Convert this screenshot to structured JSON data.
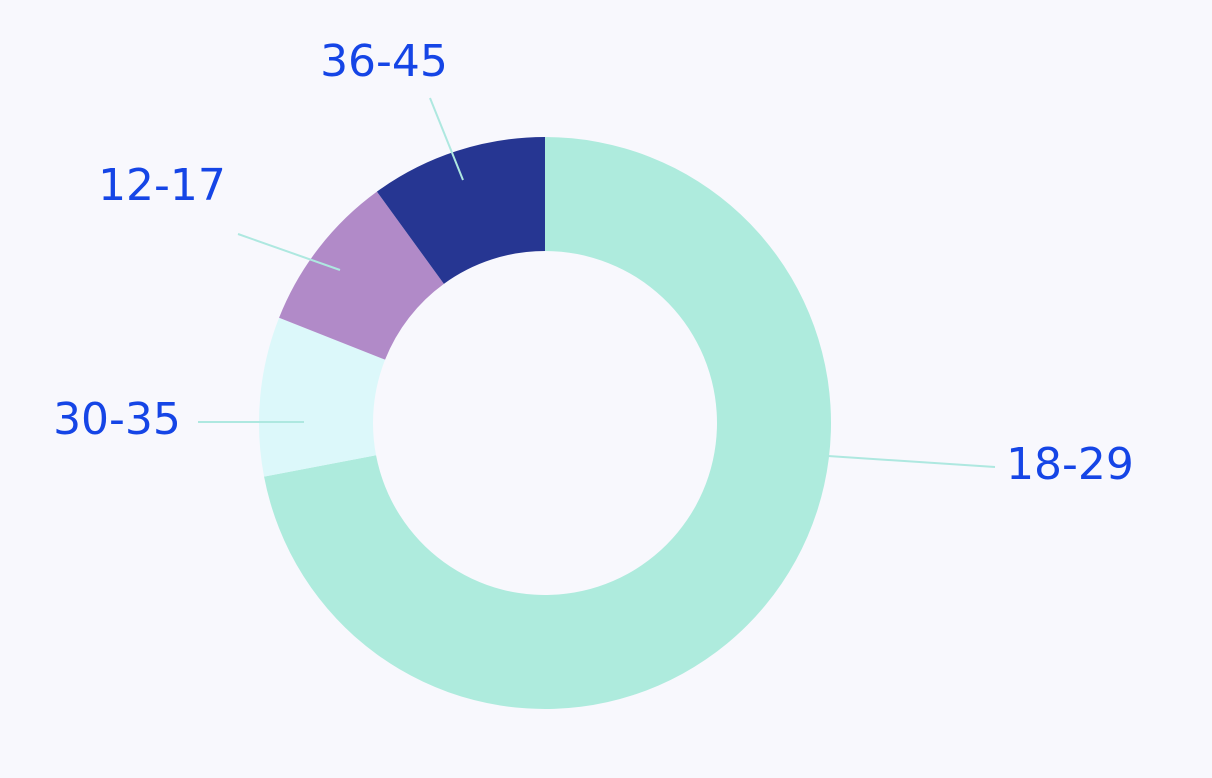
{
  "chart_data": {
    "type": "pie",
    "variant": "donut",
    "title": "",
    "slices": [
      {
        "label": "18-29",
        "value": 72,
        "color": "#aeebdd"
      },
      {
        "label": "30-35",
        "value": 9,
        "color": "#dcf8fa"
      },
      {
        "label": "12-17",
        "value": 9,
        "color": "#b18ac8"
      },
      {
        "label": "36-45",
        "value": 10,
        "color": "#263692"
      }
    ],
    "label_color": "#1545e6",
    "leader_line_color": "#aee8e0",
    "background_color": "#f8f8fd"
  }
}
